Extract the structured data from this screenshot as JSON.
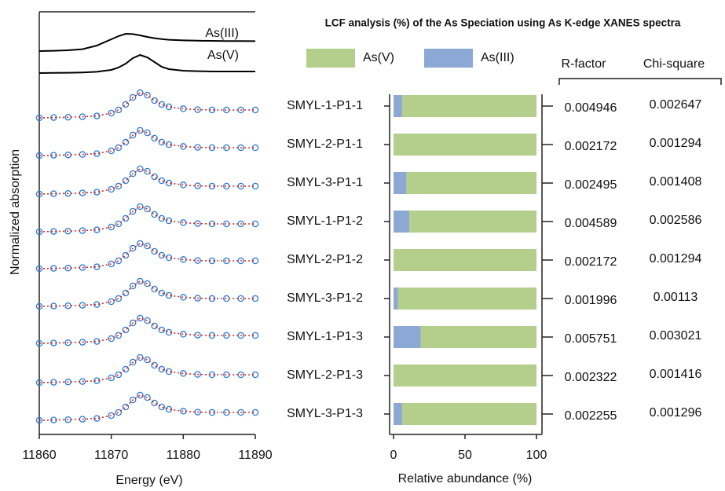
{
  "chart_data": [
    {
      "type": "line",
      "xlabel": "Energy (eV)",
      "ylabel": "Normalized absorption",
      "xlim": [
        11860,
        11890
      ],
      "xticks": [
        11860,
        11870,
        11880,
        11890
      ],
      "x": [
        11860,
        11862,
        11864,
        11866,
        11868,
        11870,
        11871,
        11872,
        11873,
        11874,
        11875,
        11876,
        11877,
        11878,
        11880,
        11882,
        11884,
        11886,
        11888,
        11890
      ],
      "series": [
        {
          "name": "As(III)",
          "color": "#000000",
          "values": [
            0,
            0.02,
            0.05,
            0.12,
            0.35,
            0.75,
            0.95,
            1.1,
            1.08,
            1.0,
            0.9,
            0.82,
            0.76,
            0.72,
            0.68,
            0.66,
            0.65,
            0.64,
            0.64,
            0.63
          ]
        },
        {
          "name": "As(V)",
          "color": "#000000",
          "values": [
            0,
            0.01,
            0.02,
            0.04,
            0.08,
            0.2,
            0.35,
            0.6,
            0.95,
            1.15,
            1.0,
            0.7,
            0.4,
            0.25,
            0.15,
            0.12,
            0.1,
            0.1,
            0.1,
            0.1
          ]
        },
        {
          "color": "#2a7bd6",
          "fit_color": "#d62728",
          "values": [
            0,
            0.02,
            0.04,
            0.07,
            0.12,
            0.3,
            0.5,
            0.85,
            1.3,
            1.6,
            1.45,
            1.1,
            0.85,
            0.7,
            0.58,
            0.52,
            0.5,
            0.5,
            0.5,
            0.5
          ]
        },
        {
          "color": "#2a7bd6",
          "fit_color": "#d62728",
          "values": [
            0,
            0.02,
            0.04,
            0.07,
            0.12,
            0.3,
            0.5,
            0.85,
            1.3,
            1.6,
            1.45,
            1.1,
            0.85,
            0.7,
            0.58,
            0.52,
            0.5,
            0.5,
            0.5,
            0.5
          ]
        },
        {
          "color": "#2a7bd6",
          "fit_color": "#d62728",
          "values": [
            0,
            0.02,
            0.04,
            0.07,
            0.12,
            0.3,
            0.5,
            0.85,
            1.3,
            1.6,
            1.45,
            1.1,
            0.85,
            0.7,
            0.58,
            0.52,
            0.5,
            0.5,
            0.5,
            0.5
          ]
        },
        {
          "color": "#2a7bd6",
          "fit_color": "#d62728",
          "values": [
            0,
            0.02,
            0.04,
            0.07,
            0.12,
            0.3,
            0.5,
            0.85,
            1.3,
            1.6,
            1.45,
            1.1,
            0.85,
            0.7,
            0.58,
            0.52,
            0.5,
            0.5,
            0.5,
            0.5
          ]
        },
        {
          "color": "#2a7bd6",
          "fit_color": "#d62728",
          "values": [
            0,
            0.02,
            0.04,
            0.07,
            0.12,
            0.3,
            0.5,
            0.85,
            1.3,
            1.6,
            1.45,
            1.1,
            0.85,
            0.7,
            0.58,
            0.52,
            0.5,
            0.5,
            0.5,
            0.5
          ]
        },
        {
          "color": "#2a7bd6",
          "fit_color": "#d62728",
          "values": [
            0,
            0.02,
            0.04,
            0.07,
            0.12,
            0.3,
            0.5,
            0.85,
            1.3,
            1.6,
            1.45,
            1.1,
            0.85,
            0.7,
            0.58,
            0.52,
            0.5,
            0.5,
            0.5,
            0.5
          ]
        },
        {
          "color": "#2a7bd6",
          "fit_color": "#d62728",
          "values": [
            0,
            0.02,
            0.04,
            0.07,
            0.12,
            0.3,
            0.5,
            0.85,
            1.3,
            1.6,
            1.45,
            1.1,
            0.85,
            0.7,
            0.58,
            0.52,
            0.5,
            0.5,
            0.5,
            0.5
          ]
        },
        {
          "color": "#2a7bd6",
          "fit_color": "#d62728",
          "values": [
            0,
            0.02,
            0.04,
            0.07,
            0.12,
            0.3,
            0.5,
            0.85,
            1.3,
            1.6,
            1.45,
            1.1,
            0.85,
            0.7,
            0.58,
            0.52,
            0.5,
            0.5,
            0.5,
            0.5
          ]
        },
        {
          "color": "#2a7bd6",
          "fit_color": "#d62728",
          "values": [
            0,
            0.02,
            0.04,
            0.07,
            0.12,
            0.3,
            0.5,
            0.85,
            1.3,
            1.6,
            1.45,
            1.1,
            0.85,
            0.7,
            0.58,
            0.52,
            0.5,
            0.5,
            0.5,
            0.5
          ]
        }
      ]
    },
    {
      "type": "stacked-hbar",
      "title": "LCF analysis (%) of the As Speciation using As K-edge XANES spectra",
      "xlabel": "Relative abundance (%)",
      "xlim": [
        0,
        100
      ],
      "xticks": [
        0,
        50,
        100
      ],
      "categories": [
        "SMYL-1-P1-1",
        "SMYL-2-P1-1",
        "SMYL-3-P1-1",
        "SMYL-1-P1-2",
        "SMYL-2-P1-2",
        "SMYL-3-P1-2",
        "SMYL-1-P1-3",
        "SMYL-2-P1-3",
        "SMYL-3-P1-3"
      ],
      "series": [
        {
          "name": "As(III)",
          "color": "#8ca8d4",
          "values": [
            6,
            0,
            9,
            11,
            0,
            3,
            19,
            0,
            6
          ]
        },
        {
          "name": "As(V)",
          "color": "#b4cf8b",
          "values": [
            94,
            100,
            91,
            89,
            100,
            97,
            81,
            100,
            94
          ]
        }
      ],
      "legend_order": [
        1,
        0
      ],
      "table": {
        "headers": [
          "R-factor",
          "Chi-square"
        ],
        "columns": [
          [
            0.004946,
            0.002172,
            0.002495,
            0.004589,
            0.002172,
            0.001996,
            0.005751,
            0.002322,
            0.002255
          ],
          [
            0.002647,
            0.001294,
            0.001408,
            0.002586,
            0.001294,
            0.00113,
            0.003021,
            0.001416,
            0.001296
          ]
        ]
      }
    }
  ]
}
